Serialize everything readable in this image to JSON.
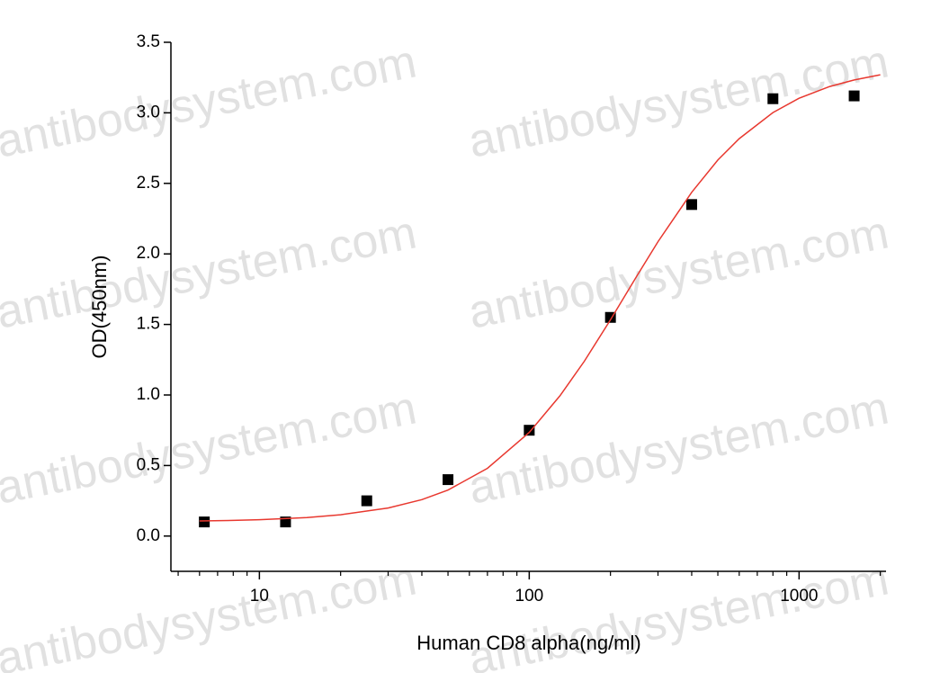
{
  "watermark": "antibodysystem.com",
  "chart_data": {
    "type": "scatter",
    "x_label": "Human CD8 alpha(ng/ml)",
    "y_label": "OD(450nm)",
    "xscale": "log",
    "xlim": [
      4.7,
      2100
    ],
    "ylim": [
      -0.25,
      3.5
    ],
    "xticks": [
      10,
      100,
      1000
    ],
    "xminorticks": [
      5,
      6,
      7,
      8,
      9,
      20,
      30,
      40,
      50,
      60,
      70,
      80,
      90,
      200,
      300,
      400,
      500,
      600,
      700,
      800,
      900,
      2000
    ],
    "yticks": [
      {
        "value": 0,
        "label": "0.0"
      },
      0.5,
      {
        "value": 1,
        "label": "1.0"
      },
      1.5,
      {
        "value": 2,
        "label": "2.0"
      },
      2.5,
      {
        "value": 3,
        "label": "3.0"
      },
      3.5
    ],
    "series": [
      {
        "kind": "points",
        "color": "#000000",
        "x": [
          6.25,
          12.5,
          25,
          50,
          100,
          200,
          400,
          800,
          1600
        ],
        "values": [
          0.1,
          0.1,
          0.25,
          0.4,
          0.75,
          1.55,
          2.35,
          3.1,
          3.12
        ]
      },
      {
        "kind": "fit",
        "color": "#e8382f",
        "x": [
          6,
          8,
          10,
          15,
          20,
          30,
          40,
          50,
          70,
          100,
          130,
          160,
          200,
          250,
          300,
          400,
          500,
          600,
          800,
          1000,
          1300,
          1600,
          2000
        ],
        "values": [
          0.107,
          0.111,
          0.116,
          0.131,
          0.151,
          0.199,
          0.258,
          0.326,
          0.48,
          0.735,
          0.994,
          1.239,
          1.533,
          1.84,
          2.087,
          2.437,
          2.665,
          2.817,
          3.002,
          3.103,
          3.187,
          3.233,
          3.27
        ]
      }
    ]
  }
}
